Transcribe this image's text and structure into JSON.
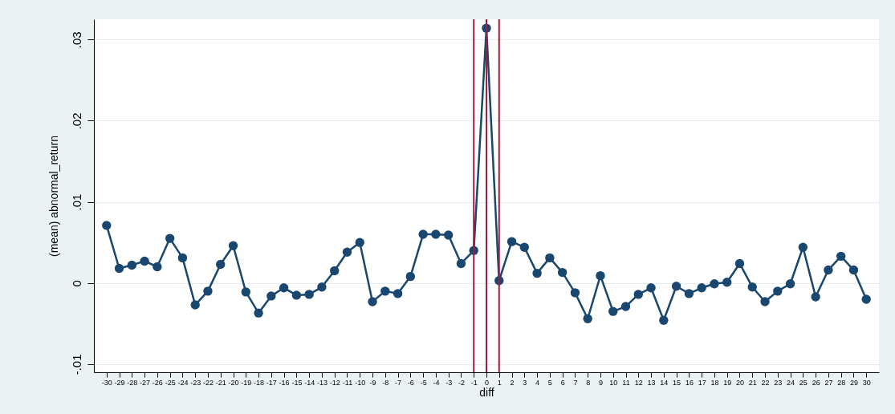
{
  "chart_data": {
    "type": "line",
    "xlabel": "diff",
    "ylabel": "(mean) abnormal_return",
    "x": [
      -30,
      -29,
      -28,
      -27,
      -26,
      -25,
      -24,
      -23,
      -22,
      -21,
      -20,
      -19,
      -18,
      -17,
      -16,
      -15,
      -14,
      -13,
      -12,
      -11,
      -10,
      -9,
      -8,
      -7,
      -6,
      -5,
      -4,
      -3,
      -2,
      -1,
      0,
      1,
      2,
      3,
      4,
      5,
      6,
      7,
      8,
      9,
      10,
      11,
      12,
      13,
      14,
      15,
      16,
      17,
      18,
      19,
      20,
      21,
      22,
      23,
      24,
      25,
      26,
      27,
      28,
      29,
      30
    ],
    "series": [
      {
        "color": "#1a476f",
        "values": [
          0.0071,
          0.0018,
          0.0022,
          0.0027,
          0.002,
          0.0055,
          0.0031,
          -0.0027,
          -0.001,
          0.0023,
          0.0046,
          -0.0011,
          -0.0037,
          -0.0016,
          -0.0006,
          -0.0015,
          -0.0014,
          -0.0005,
          0.0015,
          0.0038,
          0.005,
          -0.0023,
          -0.001,
          -0.0013,
          0.0008,
          0.006,
          0.006,
          0.0059,
          0.0024,
          0.004,
          0.0314,
          0.0003,
          0.0051,
          0.0044,
          0.0012,
          0.0031,
          0.0013,
          -0.0012,
          -0.0044,
          0.0009,
          -0.0035,
          -0.0029,
          -0.0014,
          -0.0006,
          -0.0046,
          -0.0004,
          -0.0013,
          -0.0006,
          -0.0001,
          0.0001,
          0.0024,
          -0.0005,
          -0.0023,
          -0.001,
          -0.0001,
          0.0044,
          -0.0017,
          0.0016,
          0.0033,
          0.0016,
          -0.002
        ]
      }
    ],
    "xlim": [
      -31,
      31
    ],
    "xticks": [
      -30,
      -29,
      -28,
      -27,
      -26,
      -25,
      -24,
      -23,
      -22,
      -21,
      -20,
      -19,
      -18,
      -17,
      -16,
      -15,
      -14,
      -13,
      -12,
      -11,
      -10,
      -9,
      -8,
      -7,
      -6,
      -5,
      -4,
      -3,
      -2,
      -1,
      0,
      1,
      2,
      3,
      4,
      5,
      6,
      7,
      8,
      9,
      10,
      11,
      12,
      13,
      14,
      15,
      16,
      17,
      18,
      19,
      20,
      21,
      22,
      23,
      24,
      25,
      26,
      27,
      28,
      29,
      30
    ],
    "ylim": [
      -0.011,
      0.0325
    ],
    "yticks": [
      {
        "value": -0.01,
        "label": "-.01"
      },
      0,
      {
        "value": 0.01,
        "label": ".01"
      },
      {
        "value": 0.02,
        "label": ".02"
      },
      {
        "value": 0.03,
        "label": ".03"
      }
    ],
    "ref_lines": [
      {
        "axis": "x",
        "value": -1,
        "color": "#a01d43"
      },
      {
        "axis": "x",
        "value": 0,
        "color": "#a01d43"
      },
      {
        "axis": "x",
        "value": 1,
        "color": "#a01d43"
      }
    ],
    "grid": "y",
    "marker": "circle",
    "line_style": "solid"
  }
}
